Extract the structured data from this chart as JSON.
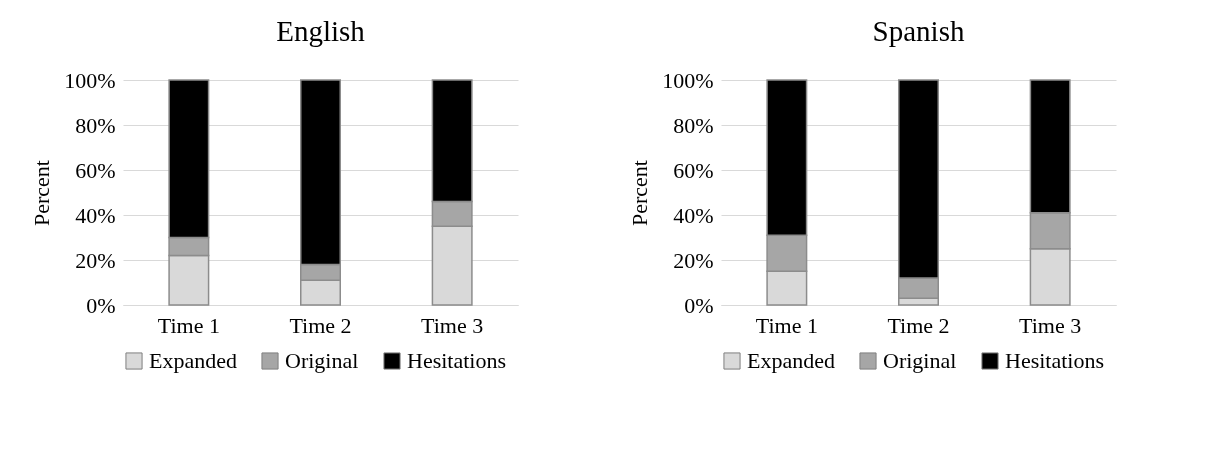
{
  "chart_data": [
    {
      "type": "bar",
      "title": "English",
      "ylabel": "Percent",
      "categories": [
        "Time 1",
        "Time 2",
        "Time 3"
      ],
      "stacked": true,
      "grid": "y",
      "legend": "bottom",
      "ylim": [
        0,
        100
      ],
      "yticks": [
        {
          "value": 0,
          "label": "0%"
        },
        {
          "value": 20,
          "label": "20%"
        },
        {
          "value": 40,
          "label": "40%"
        },
        {
          "value": 60,
          "label": "60%"
        },
        {
          "value": 80,
          "label": "80%"
        },
        {
          "value": 100,
          "label": "100%"
        }
      ],
      "series": [
        {
          "name": "Expanded",
          "color": "#d9d9d9",
          "values": [
            22,
            11,
            35
          ]
        },
        {
          "name": "Original",
          "color": "#a6a6a6",
          "values": [
            8,
            7,
            11
          ]
        },
        {
          "name": "Hesitations",
          "color": "#000000",
          "values": [
            70,
            82,
            54
          ]
        }
      ]
    },
    {
      "type": "bar",
      "title": "Spanish",
      "ylabel": "Percent",
      "categories": [
        "Time 1",
        "Time 2",
        "Time 3"
      ],
      "stacked": true,
      "grid": "y",
      "legend": "bottom",
      "ylim": [
        0,
        100
      ],
      "yticks": [
        {
          "value": 0,
          "label": "0%"
        },
        {
          "value": 20,
          "label": "20%"
        },
        {
          "value": 40,
          "label": "40%"
        },
        {
          "value": 60,
          "label": "60%"
        },
        {
          "value": 80,
          "label": "80%"
        },
        {
          "value": 100,
          "label": "100%"
        }
      ],
      "series": [
        {
          "name": "Expanded",
          "color": "#d9d9d9",
          "values": [
            15,
            3,
            25
          ]
        },
        {
          "name": "Original",
          "color": "#a6a6a6",
          "values": [
            16,
            9,
            16
          ]
        },
        {
          "name": "Hesitations",
          "color": "#000000",
          "values": [
            69,
            88,
            59
          ]
        }
      ]
    }
  ]
}
